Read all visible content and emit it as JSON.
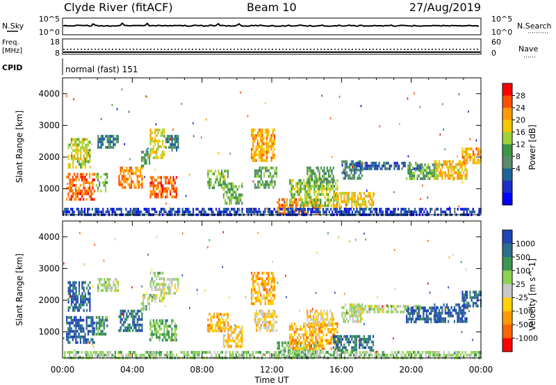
{
  "header": {
    "station": "Clyde River (fitACF)",
    "beam": "Beam 10",
    "date": "27/Aug/2019"
  },
  "top_panels": {
    "nsky_label": "N.Sky",
    "nsky_ticks": [
      "10^5",
      "10^0"
    ],
    "nsearch_label": "N.Search",
    "nsearch_ticks": [
      "10^5",
      "10^0"
    ],
    "freq_label": "Freq.",
    "freq_unit": "[MHz]",
    "freq_ticks": [
      "18",
      "8"
    ],
    "nave_label": "Nave",
    "nave_ticks": [
      "60",
      "0"
    ],
    "cpid_label": "CPID",
    "cpid_value": "normal (fast) 151"
  },
  "chart_data": [
    {
      "type": "heatmap",
      "name": "power",
      "ylabel": "Slant Range [km]",
      "xlabel": "Time UT",
      "x_ticks": [
        "00:00",
        "04:00",
        "08:00",
        "12:00",
        "16:00",
        "20:00",
        "00:00"
      ],
      "x_range_hours": [
        0,
        24
      ],
      "y_ticks": [
        1000,
        2000,
        3000,
        4000
      ],
      "ylim": [
        180,
        4500
      ],
      "colorbar_label": "Power [dB]",
      "colorbar_ticks": [
        "28",
        "24",
        "20",
        "16",
        "12",
        "8",
        "4"
      ],
      "colors": [
        "#ff0000",
        "#ff5000",
        "#ff9a00",
        "#f5c800",
        "#9ed23c",
        "#3c9646",
        "#5a8c6e",
        "#1e6496",
        "#1e2fc8",
        "#0000ff"
      ],
      "echo_regions": [
        {
          "t0": 0.2,
          "t1": 1.8,
          "r0": 700,
          "r1": 1500,
          "level": 0.85
        },
        {
          "t0": 0.3,
          "t1": 1.6,
          "r0": 1700,
          "r1": 2600,
          "level": 0.6
        },
        {
          "t0": 1.9,
          "t1": 2.6,
          "r0": 900,
          "r1": 1500,
          "level": 0.5
        },
        {
          "t0": 2.0,
          "t1": 3.2,
          "r0": 2300,
          "r1": 2700,
          "level": 0.3
        },
        {
          "t0": 3.2,
          "t1": 4.6,
          "r0": 1000,
          "r1": 1700,
          "level": 0.8
        },
        {
          "t0": 4.5,
          "t1": 5.0,
          "r0": 1700,
          "r1": 2200,
          "level": 0.4
        },
        {
          "t0": 5.0,
          "t1": 6.5,
          "r0": 700,
          "r1": 1400,
          "level": 0.85
        },
        {
          "t0": 5.0,
          "t1": 5.8,
          "r0": 2000,
          "r1": 2900,
          "level": 0.65
        },
        {
          "t0": 5.8,
          "t1": 6.6,
          "r0": 2200,
          "r1": 2700,
          "level": 0.3
        },
        {
          "t0": 8.3,
          "t1": 9.5,
          "r0": 1000,
          "r1": 1600,
          "level": 0.5
        },
        {
          "t0": 9.2,
          "t1": 10.3,
          "r0": 500,
          "r1": 1200,
          "level": 0.45
        },
        {
          "t0": 10.8,
          "t1": 12.2,
          "r0": 1900,
          "r1": 2900,
          "level": 0.75
        },
        {
          "t0": 11.0,
          "t1": 12.3,
          "r0": 1000,
          "r1": 1700,
          "level": 0.45
        },
        {
          "t0": 12.3,
          "t1": 14.8,
          "r0": 230,
          "r1": 700,
          "level": 0.85
        },
        {
          "t0": 13.0,
          "t1": 15.8,
          "r0": 500,
          "r1": 1300,
          "level": 0.55
        },
        {
          "t0": 14.0,
          "t1": 15.5,
          "r0": 1200,
          "r1": 1700,
          "level": 0.4
        },
        {
          "t0": 15.5,
          "t1": 17.8,
          "r0": 400,
          "r1": 900,
          "level": 0.7
        },
        {
          "t0": 16.0,
          "t1": 17.2,
          "r0": 1300,
          "r1": 1900,
          "level": 0.35
        },
        {
          "t0": 16.8,
          "t1": 20.5,
          "r0": 1650,
          "r1": 1850,
          "level": 0.2
        },
        {
          "t0": 19.7,
          "t1": 21.5,
          "r0": 1300,
          "r1": 1800,
          "level": 0.45
        },
        {
          "t0": 21.3,
          "t1": 23.2,
          "r0": 1300,
          "r1": 1900,
          "level": 0.7
        },
        {
          "t0": 22.9,
          "t1": 24.0,
          "r0": 1800,
          "r1": 2300,
          "level": 0.75
        },
        {
          "t0": 0.0,
          "t1": 24.0,
          "r0": 180,
          "r1": 400,
          "level": 0.15
        }
      ]
    },
    {
      "type": "heatmap",
      "name": "velocity",
      "ylabel": "Slant Range [km]",
      "xlabel": "Time UT",
      "x_ticks": [
        "00:00",
        "04:00",
        "08:00",
        "12:00",
        "16:00",
        "20:00",
        "00:00"
      ],
      "x_range_hours": [
        0,
        24
      ],
      "y_ticks": [
        1000,
        2000,
        3000,
        4000
      ],
      "ylim": [
        180,
        4500
      ],
      "colorbar_label": "Velocity [m s^-1]",
      "colorbar_ticks": [
        "1000",
        "500",
        "100",
        "25",
        "-25",
        "-100",
        "-500",
        "-1000"
      ],
      "colors": [
        "#1e46b4",
        "#2d6e8c",
        "#3c9650",
        "#8cd250",
        "#c8c8c8",
        "#ffd200",
        "#ff9a00",
        "#ff6400",
        "#ff0000"
      ],
      "echo_regions": [
        {
          "t0": 0.2,
          "t1": 1.8,
          "r0": 700,
          "r1": 1500,
          "level": 0.05
        },
        {
          "t0": 0.3,
          "t1": 1.6,
          "r0": 1700,
          "r1": 2600,
          "level": 0.1
        },
        {
          "t0": 1.9,
          "t1": 2.6,
          "r0": 900,
          "r1": 1500,
          "level": 0.25
        },
        {
          "t0": 2.0,
          "t1": 3.2,
          "r0": 2300,
          "r1": 2700,
          "level": 0.45
        },
        {
          "t0": 3.2,
          "t1": 4.6,
          "r0": 1000,
          "r1": 1700,
          "level": 0.15
        },
        {
          "t0": 4.5,
          "t1": 5.0,
          "r0": 1700,
          "r1": 2200,
          "level": 0.45
        },
        {
          "t0": 5.0,
          "t1": 6.5,
          "r0": 700,
          "r1": 1400,
          "level": 0.3
        },
        {
          "t0": 5.0,
          "t1": 5.8,
          "r0": 2000,
          "r1": 2900,
          "level": 0.45
        },
        {
          "t0": 5.8,
          "t1": 6.6,
          "r0": 2200,
          "r1": 2700,
          "level": 0.45
        },
        {
          "t0": 8.3,
          "t1": 9.5,
          "r0": 1000,
          "r1": 1600,
          "level": 0.7
        },
        {
          "t0": 9.2,
          "t1": 10.3,
          "r0": 500,
          "r1": 1200,
          "level": 0.65
        },
        {
          "t0": 10.8,
          "t1": 12.2,
          "r0": 1900,
          "r1": 2900,
          "level": 0.7
        },
        {
          "t0": 11.0,
          "t1": 12.3,
          "r0": 1000,
          "r1": 1700,
          "level": 0.6
        },
        {
          "t0": 12.3,
          "t1": 14.8,
          "r0": 230,
          "r1": 700,
          "level": 0.35
        },
        {
          "t0": 13.0,
          "t1": 15.8,
          "r0": 500,
          "r1": 1300,
          "level": 0.7
        },
        {
          "t0": 14.0,
          "t1": 15.5,
          "r0": 1200,
          "r1": 1700,
          "level": 0.6
        },
        {
          "t0": 15.5,
          "t1": 17.8,
          "r0": 400,
          "r1": 900,
          "level": 0.15
        },
        {
          "t0": 16.0,
          "t1": 17.2,
          "r0": 1300,
          "r1": 1900,
          "level": 0.45
        },
        {
          "t0": 16.8,
          "t1": 20.5,
          "r0": 1650,
          "r1": 1850,
          "level": 0.45
        },
        {
          "t0": 19.7,
          "t1": 21.5,
          "r0": 1300,
          "r1": 1800,
          "level": 0.05
        },
        {
          "t0": 21.3,
          "t1": 23.2,
          "r0": 1300,
          "r1": 1900,
          "level": 0.05
        },
        {
          "t0": 22.9,
          "t1": 24.0,
          "r0": 1800,
          "r1": 2300,
          "level": 0.1
        },
        {
          "t0": 0.0,
          "t1": 24.0,
          "r0": 180,
          "r1": 400,
          "level": 0.4
        }
      ]
    }
  ]
}
